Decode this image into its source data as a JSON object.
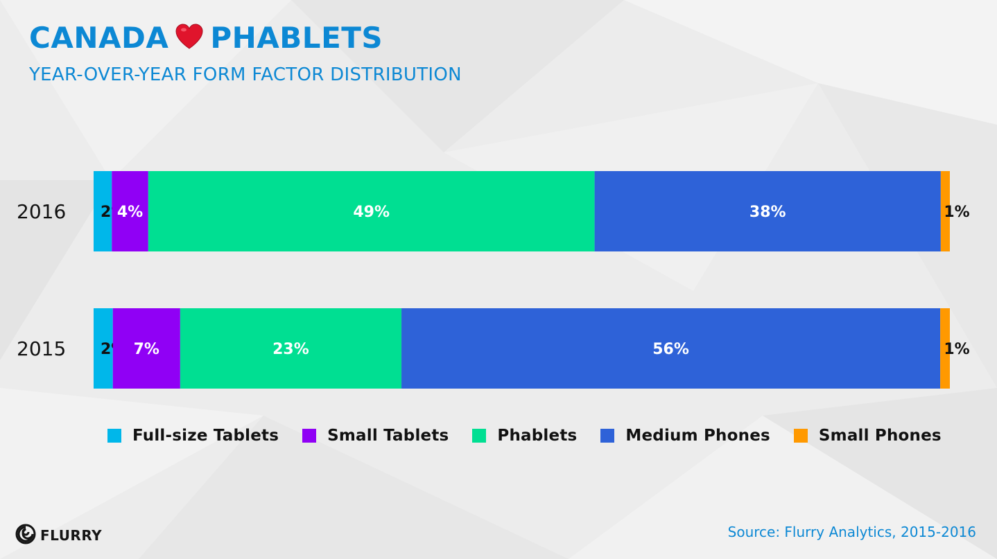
{
  "header": {
    "title_left": "CANADA",
    "title_right": "PHABLETS",
    "subtitle": "YEAR-OVER-YEAR FORM FACTOR DISTRIBUTION"
  },
  "chart_data": {
    "type": "bar",
    "orientation": "horizontal",
    "stacked": true,
    "categories": [
      "2016",
      "2015"
    ],
    "series": [
      {
        "name": "Full-size Tablets",
        "color": "#00b7ea",
        "values": [
          2,
          2
        ],
        "labels": [
          "2%",
          "2%"
        ]
      },
      {
        "name": "Small Tablets",
        "color": "#9000f5",
        "values": [
          4,
          7
        ],
        "labels": [
          "4%",
          "7%"
        ]
      },
      {
        "name": "Phablets",
        "color": "#00df92",
        "values": [
          49,
          23
        ],
        "labels": [
          "49%",
          "23%"
        ]
      },
      {
        "name": "Medium Phones",
        "color": "#2e62d8",
        "values": [
          38,
          56
        ],
        "labels": [
          "38%",
          "56%"
        ]
      },
      {
        "name": "Small Phones",
        "color": "#ff9900",
        "values": [
          1,
          1
        ],
        "labels": [
          "1%",
          "1%"
        ]
      }
    ],
    "legend_position": "bottom",
    "grid": false
  },
  "footer": {
    "logo_text": "FLURRY",
    "logo_icon": "flurry-swirl-icon",
    "source": "Source:  Flurry Analytics, 2015-2016"
  }
}
